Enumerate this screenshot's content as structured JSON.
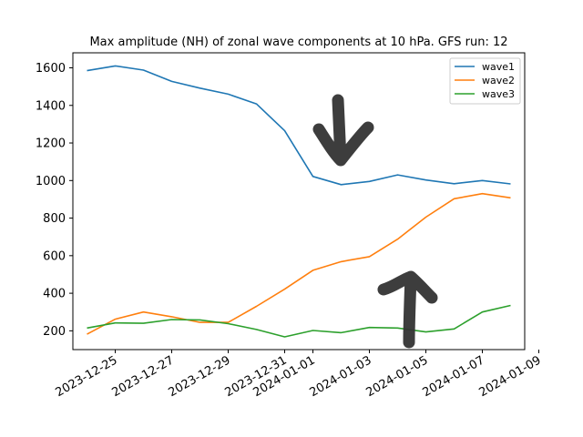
{
  "chart_data": {
    "type": "line",
    "title": "Max amplitude (NH) of zonal wave components at 10 hPa. GFS run: 12",
    "xlabel": "",
    "ylabel": "",
    "x": [
      "2023-12-24",
      "2023-12-25",
      "2023-12-26",
      "2023-12-27",
      "2023-12-28",
      "2023-12-29",
      "2023-12-30",
      "2023-12-31",
      "2024-01-01",
      "2024-01-02",
      "2024-01-03",
      "2024-01-04",
      "2024-01-05",
      "2024-01-06",
      "2024-01-07",
      "2024-01-08"
    ],
    "xlim": [
      "2023-12-23T12:00",
      "2024-01-08T12:00"
    ],
    "xticks": [
      "2023-12-25",
      "2023-12-27",
      "2023-12-29",
      "2023-12-31",
      "2024-01-01",
      "2024-01-03",
      "2024-01-05",
      "2024-01-07",
      "2024-01-09"
    ],
    "ylim": [
      100,
      1680
    ],
    "yticks": [
      200,
      400,
      600,
      800,
      1000,
      1200,
      1400,
      1600
    ],
    "legend_position": "top-right",
    "series": [
      {
        "name": "wave1",
        "color": "#1f77b4",
        "values": [
          1585,
          1610,
          1588,
          1528,
          1492,
          1460,
          1408,
          1265,
          1022,
          978,
          995,
          1030,
          1003,
          983,
          1000,
          982
        ]
      },
      {
        "name": "wave2",
        "color": "#ff7f0e",
        "values": [
          182,
          262,
          300,
          275,
          245,
          245,
          330,
          422,
          522,
          568,
          595,
          688,
          805,
          903,
          930,
          908
        ]
      },
      {
        "name": "wave3",
        "color": "#2ca02c",
        "values": [
          215,
          242,
          240,
          260,
          258,
          238,
          207,
          168,
          202,
          190,
          218,
          215,
          194,
          210,
          300,
          335
        ]
      }
    ],
    "annotations": [
      {
        "type": "hand-drawn-arrow",
        "direction": "down",
        "near_date": "2024-01-02",
        "color": "#333333"
      },
      {
        "type": "hand-drawn-arrow",
        "direction": "up",
        "near_date": "2024-01-05",
        "color": "#333333"
      }
    ]
  }
}
